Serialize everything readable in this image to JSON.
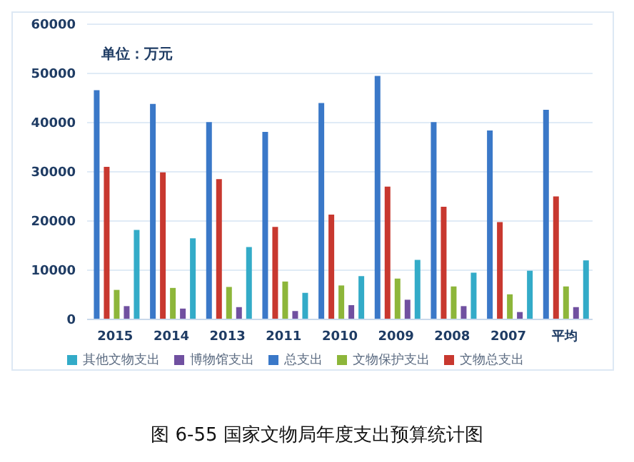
{
  "chart_data": {
    "type": "bar",
    "title": "图 6-55  国家文物局年度支出预算统计图",
    "annotations": [
      "单位：万元"
    ],
    "categories": [
      "2015",
      "2014",
      "2013",
      "2011",
      "2010",
      "2009",
      "2008",
      "2007",
      "平均"
    ],
    "series": [
      {
        "name": "总支出",
        "color": "#3a78c8",
        "values": [
          46600,
          43800,
          40100,
          38100,
          44000,
          49500,
          40100,
          38400,
          42600
        ]
      },
      {
        "name": "文物总支出",
        "color": "#c8382f",
        "values": [
          31000,
          29900,
          28500,
          18800,
          21300,
          27000,
          22900,
          19800,
          25000
        ]
      },
      {
        "name": "文物保护支出",
        "color": "#8db63a",
        "values": [
          6000,
          6400,
          6600,
          7700,
          6900,
          8300,
          6700,
          5100,
          6700
        ]
      },
      {
        "name": "博物馆支出",
        "color": "#7050a0",
        "values": [
          2700,
          2200,
          2500,
          1700,
          2900,
          4000,
          2700,
          1500,
          2500
        ]
      },
      {
        "name": "其他文物支出",
        "color": "#33abc8",
        "values": [
          18200,
          16500,
          14700,
          5400,
          8800,
          12100,
          9500,
          9900,
          12000
        ]
      }
    ],
    "ylim": [
      0,
      60000
    ],
    "yticks": [
      0,
      10000,
      20000,
      30000,
      40000,
      50000,
      60000
    ],
    "grid": "y",
    "legend": "bottom"
  }
}
